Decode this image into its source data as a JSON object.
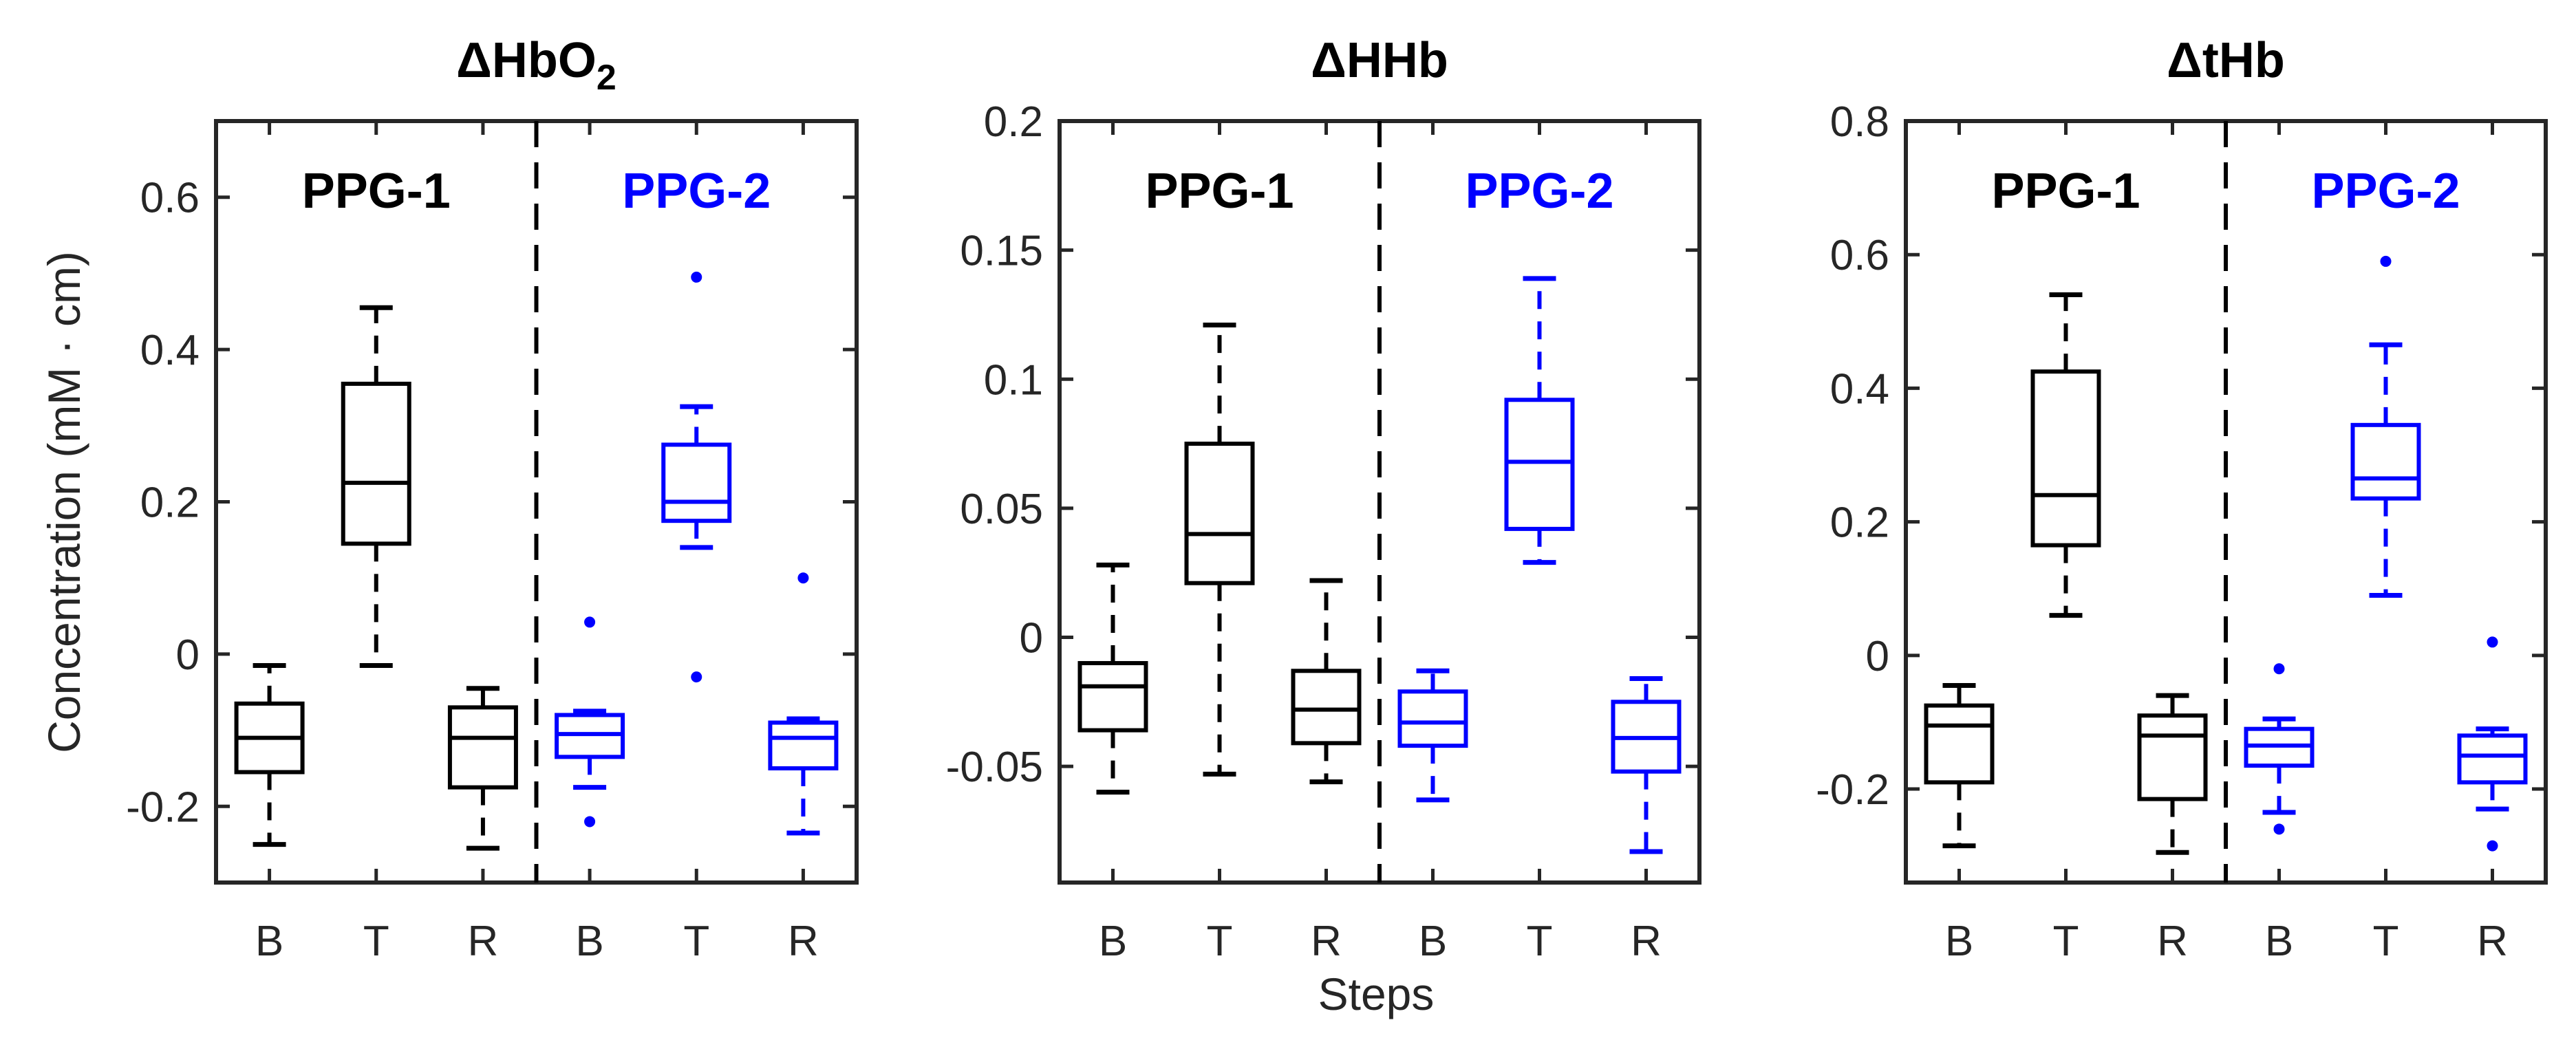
{
  "figure": {
    "ylabel": "Concentration (mM · cm)",
    "xlabel": "Steps"
  },
  "chart_data": [
    {
      "type": "box",
      "title": "ΔHbO",
      "title_subscript": "2",
      "group_labels": [
        "PPG-1",
        "PPG-2"
      ],
      "categories": [
        "B",
        "T",
        "R",
        "B",
        "T",
        "R"
      ],
      "ylim": [
        -0.3,
        0.7
      ],
      "yticks": [
        -0.2,
        0,
        0.2,
        0.4,
        0.6
      ],
      "ytick_labels": [
        "-0.2",
        "0",
        "0.2",
        "0.4",
        "0.6"
      ],
      "series": [
        {
          "name": "PPG-1",
          "color": "#000000",
          "boxes": [
            {
              "whisker_low": -0.25,
              "q1": -0.155,
              "median": -0.11,
              "q3": -0.065,
              "whisker_high": -0.015,
              "outliers": []
            },
            {
              "whisker_low": -0.015,
              "q1": 0.145,
              "median": 0.225,
              "q3": 0.355,
              "whisker_high": 0.455,
              "outliers": []
            },
            {
              "whisker_low": -0.255,
              "q1": -0.175,
              "median": -0.11,
              "q3": -0.07,
              "whisker_high": -0.045,
              "outliers": []
            }
          ]
        },
        {
          "name": "PPG-2",
          "color": "#0000ff",
          "boxes": [
            {
              "whisker_low": -0.175,
              "q1": -0.135,
              "median": -0.105,
              "q3": -0.08,
              "whisker_high": -0.075,
              "outliers": [
                0.042,
                -0.22
              ]
            },
            {
              "whisker_low": 0.14,
              "q1": 0.175,
              "median": 0.2,
              "q3": 0.275,
              "whisker_high": 0.325,
              "outliers": [
                0.495,
                -0.03
              ]
            },
            {
              "whisker_low": -0.235,
              "q1": -0.15,
              "median": -0.11,
              "q3": -0.09,
              "whisker_high": -0.085,
              "outliers": [
                0.1
              ]
            }
          ]
        }
      ]
    },
    {
      "type": "box",
      "title": "ΔHHb",
      "title_subscript": "",
      "group_labels": [
        "PPG-1",
        "PPG-2"
      ],
      "categories": [
        "B",
        "T",
        "R",
        "B",
        "T",
        "R"
      ],
      "ylim": [
        -0.095,
        0.2
      ],
      "yticks": [
        -0.05,
        0,
        0.05,
        0.1,
        0.15,
        0.2
      ],
      "ytick_labels": [
        "-0.05",
        "0",
        "0.05",
        "0.1",
        "0.15",
        "0.2"
      ],
      "series": [
        {
          "name": "PPG-1",
          "color": "#000000",
          "boxes": [
            {
              "whisker_low": -0.06,
              "q1": -0.036,
              "median": -0.019,
              "q3": -0.01,
              "whisker_high": 0.028,
              "outliers": []
            },
            {
              "whisker_low": -0.053,
              "q1": 0.021,
              "median": 0.04,
              "q3": 0.075,
              "whisker_high": 0.121,
              "outliers": []
            },
            {
              "whisker_low": -0.056,
              "q1": -0.041,
              "median": -0.028,
              "q3": -0.013,
              "whisker_high": 0.022,
              "outliers": []
            }
          ]
        },
        {
          "name": "PPG-2",
          "color": "#0000ff",
          "boxes": [
            {
              "whisker_low": -0.063,
              "q1": -0.042,
              "median": -0.033,
              "q3": -0.021,
              "whisker_high": -0.013,
              "outliers": []
            },
            {
              "whisker_low": 0.029,
              "q1": 0.042,
              "median": 0.068,
              "q3": 0.092,
              "whisker_high": 0.139,
              "outliers": []
            },
            {
              "whisker_low": -0.083,
              "q1": -0.052,
              "median": -0.039,
              "q3": -0.025,
              "whisker_high": -0.016,
              "outliers": []
            }
          ]
        }
      ]
    },
    {
      "type": "box",
      "title": "ΔtHb",
      "title_subscript": "",
      "group_labels": [
        "PPG-1",
        "PPG-2"
      ],
      "categories": [
        "B",
        "T",
        "R",
        "B",
        "T",
        "R"
      ],
      "ylim": [
        -0.34,
        0.8
      ],
      "yticks": [
        -0.2,
        0,
        0.2,
        0.4,
        0.6,
        0.8
      ],
      "ytick_labels": [
        "-0.2",
        "0",
        "0.2",
        "0.4",
        "0.6",
        "0.8"
      ],
      "series": [
        {
          "name": "PPG-1",
          "color": "#000000",
          "boxes": [
            {
              "whisker_low": -0.285,
              "q1": -0.19,
              "median": -0.105,
              "q3": -0.075,
              "whisker_high": -0.045,
              "outliers": []
            },
            {
              "whisker_low": 0.06,
              "q1": 0.165,
              "median": 0.24,
              "q3": 0.425,
              "whisker_high": 0.54,
              "outliers": []
            },
            {
              "whisker_low": -0.295,
              "q1": -0.215,
              "median": -0.12,
              "q3": -0.09,
              "whisker_high": -0.06,
              "outliers": []
            }
          ]
        },
        {
          "name": "PPG-2",
          "color": "#0000ff",
          "boxes": [
            {
              "whisker_low": -0.235,
              "q1": -0.165,
              "median": -0.135,
              "q3": -0.11,
              "whisker_high": -0.095,
              "outliers": [
                -0.02,
                -0.26
              ]
            },
            {
              "whisker_low": 0.09,
              "q1": 0.235,
              "median": 0.265,
              "q3": 0.345,
              "whisker_high": 0.465,
              "outliers": [
                0.59
              ]
            },
            {
              "whisker_low": -0.23,
              "q1": -0.19,
              "median": -0.15,
              "q3": -0.12,
              "whisker_high": -0.11,
              "outliers": [
                0.02,
                -0.285
              ]
            }
          ]
        }
      ]
    }
  ]
}
